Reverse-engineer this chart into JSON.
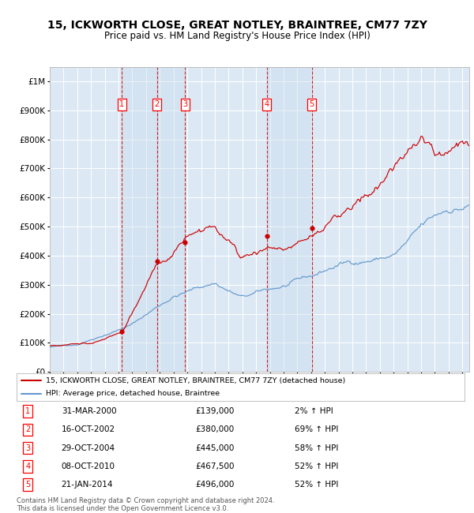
{
  "title": "15, ICKWORTH CLOSE, GREAT NOTLEY, BRAINTREE, CM77 7ZY",
  "subtitle": "Price paid vs. HM Land Registry's House Price Index (HPI)",
  "title_fontsize": 10,
  "subtitle_fontsize": 8.5,
  "plot_bg_color": "#dce9f5",
  "grid_color": "#ffffff",
  "hpi_line_color": "#6699cc",
  "price_line_color": "#cc0000",
  "transactions": [
    {
      "num": 1,
      "date_str": "31-MAR-2000",
      "year": 2000.25,
      "price": 139000,
      "hpi_pct": "2% ↑ HPI"
    },
    {
      "num": 2,
      "date_str": "16-OCT-2002",
      "year": 2002.79,
      "price": 380000,
      "hpi_pct": "69% ↑ HPI"
    },
    {
      "num": 3,
      "date_str": "29-OCT-2004",
      "year": 2004.83,
      "price": 445000,
      "hpi_pct": "58% ↑ HPI"
    },
    {
      "num": 4,
      "date_str": "08-OCT-2010",
      "year": 2010.77,
      "price": 467500,
      "hpi_pct": "52% ↑ HPI"
    },
    {
      "num": 5,
      "date_str": "21-JAN-2014",
      "year": 2014.05,
      "price": 496000,
      "hpi_pct": "52% ↑ HPI"
    }
  ],
  "legend_line1": "15, ICKWORTH CLOSE, GREAT NOTLEY, BRAINTREE, CM77 7ZY (detached house)",
  "legend_line2": "HPI: Average price, detached house, Braintree",
  "footer1": "Contains HM Land Registry data © Crown copyright and database right 2024.",
  "footer2": "This data is licensed under the Open Government Licence v3.0.",
  "ylim": [
    0,
    1050000
  ],
  "xlim_start": 1995,
  "xlim_end": 2025.5
}
